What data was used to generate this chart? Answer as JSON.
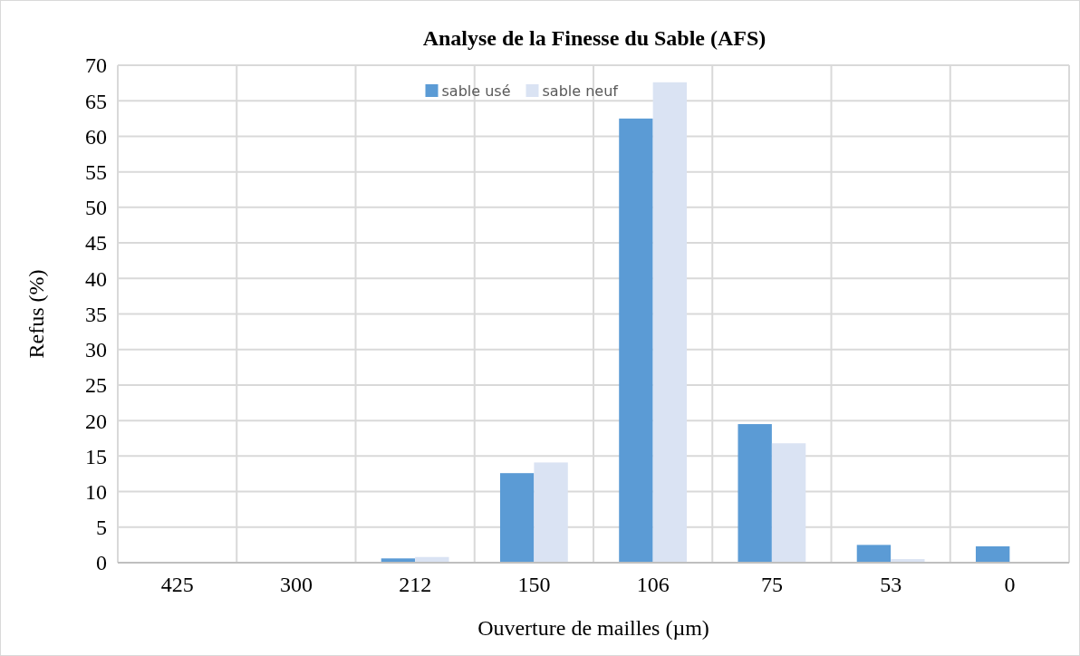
{
  "chart_data": {
    "type": "bar",
    "title": "Analyse de la Finesse du Sable (AFS)",
    "xlabel": "Ouverture de mailles  (µm)",
    "ylabel": "Refus (%)",
    "categories": [
      "425",
      "300",
      "212",
      "150",
      "106",
      "75",
      "53",
      "0"
    ],
    "series": [
      {
        "name": "sable usé",
        "color": "#5b9bd5",
        "values": [
          0,
          0,
          0.6,
          12.6,
          62.5,
          19.5,
          2.5,
          2.3
        ]
      },
      {
        "name": "sable neuf",
        "color": "#dae3f3",
        "values": [
          0,
          0,
          0.8,
          14.1,
          67.6,
          16.8,
          0.5,
          0.1
        ]
      }
    ],
    "ylim": [
      0,
      70
    ],
    "yticks": [
      0,
      5,
      10,
      15,
      20,
      25,
      30,
      35,
      40,
      45,
      50,
      55,
      60,
      65,
      70
    ],
    "grid": true,
    "legend": "top"
  }
}
